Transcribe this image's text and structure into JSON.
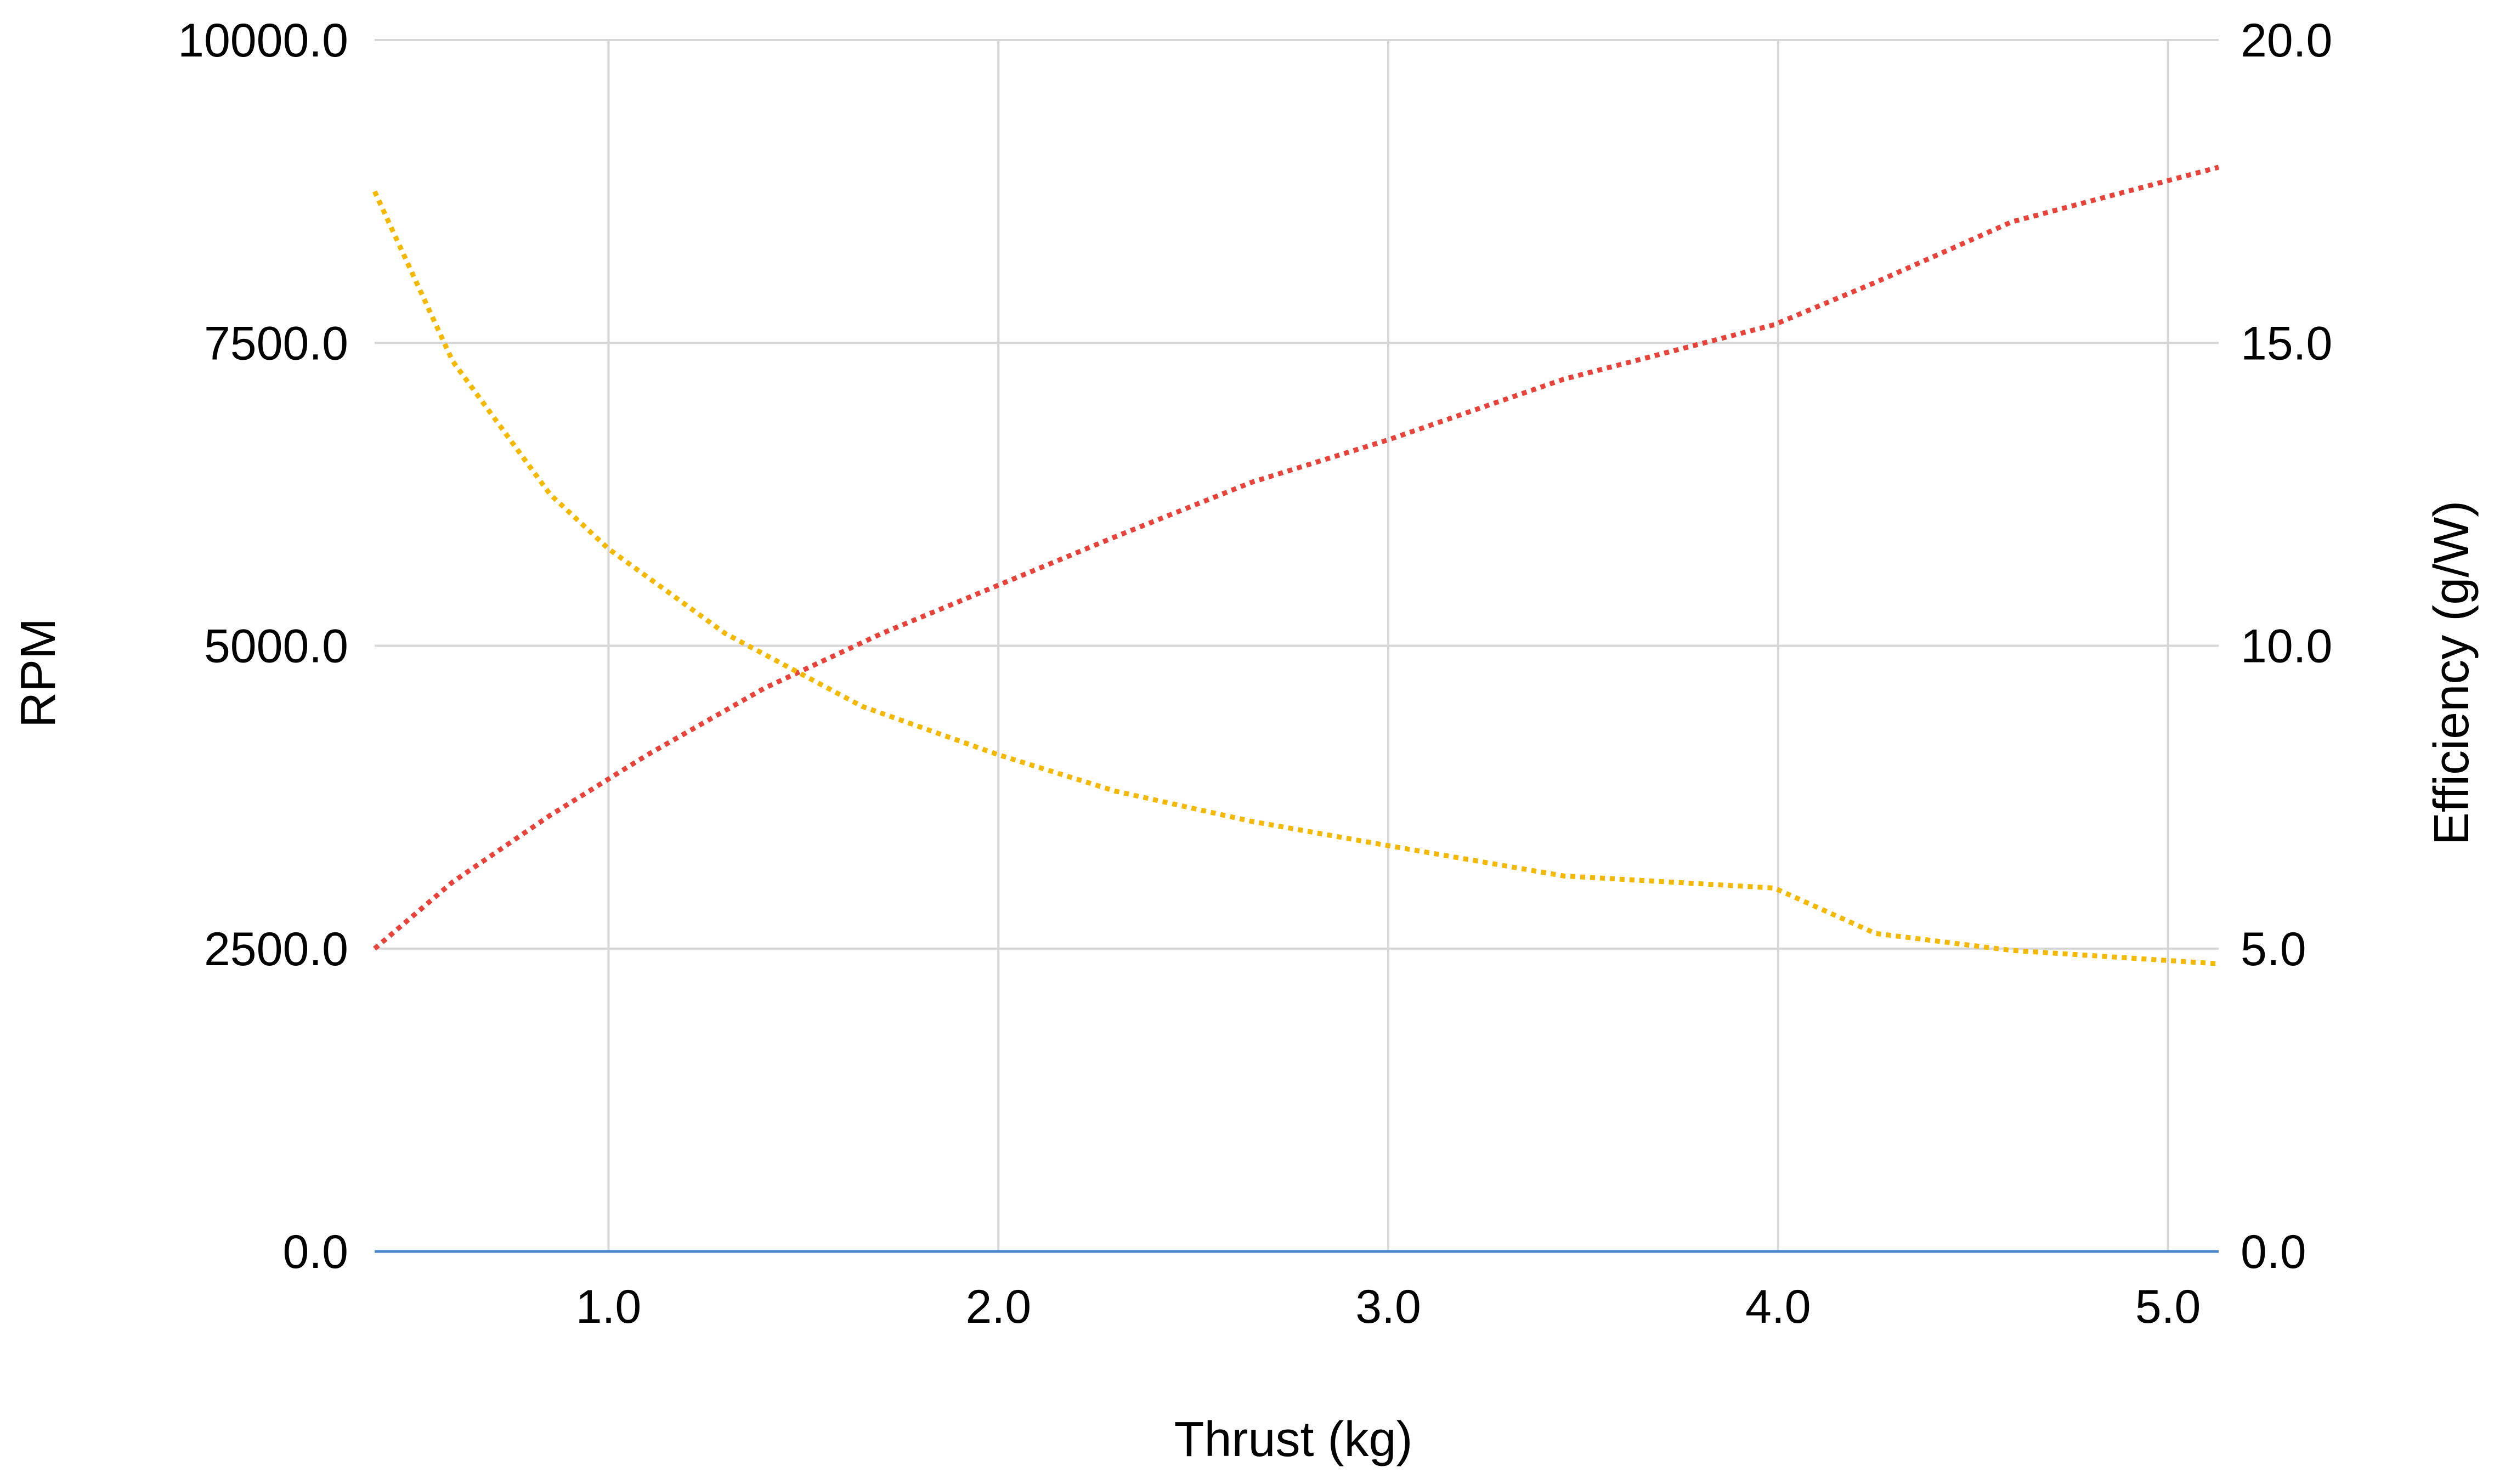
{
  "chart_data": {
    "type": "line",
    "xlabel": "Thrust (kg)",
    "ylabel": "RPM",
    "y2label": "Efficiency (g/W)",
    "xlim": [
      0.4,
      5.13
    ],
    "ylim": [
      0,
      10000
    ],
    "y2lim": [
      0,
      20
    ],
    "x_ticks": [
      "1.0",
      "2.0",
      "3.0",
      "4.0",
      "5.0"
    ],
    "y_ticks": [
      "0.0",
      "2500.0",
      "5000.0",
      "7500.0",
      "10000.0"
    ],
    "y2_ticks": [
      "0.0",
      "5.0",
      "10.0",
      "15.0",
      "20.0"
    ],
    "grid": true,
    "legend": "none",
    "series": [
      {
        "axis": "left",
        "color": "#e8423a",
        "style": "dotted",
        "x": [
          0.4,
          0.6,
          0.85,
          1.1,
          1.4,
          1.7,
          2.0,
          2.3,
          2.65,
          3.0,
          3.45,
          3.99,
          4.25,
          4.6,
          5.13
        ],
        "y": [
          2500,
          3050,
          3600,
          4100,
          4650,
          5100,
          5500,
          5900,
          6350,
          6700,
          7200,
          7650,
          8000,
          8500,
          8950
        ]
      },
      {
        "axis": "right",
        "color": "#f5b800",
        "style": "dotted",
        "x": [
          0.4,
          0.6,
          0.85,
          1.0,
          1.3,
          1.65,
          2.0,
          2.3,
          2.65,
          3.0,
          3.45,
          3.99,
          4.25,
          4.6,
          5.13
        ],
        "y": [
          17.5,
          14.7,
          12.5,
          11.6,
          10.2,
          9.0,
          8.2,
          7.6,
          7.1,
          6.7,
          6.2,
          6.0,
          5.25,
          4.97,
          4.75
        ]
      },
      {
        "axis": "left",
        "color": "#4a86c8",
        "style": "solid",
        "x": [
          0.4,
          5.13
        ],
        "y": [
          0,
          0
        ]
      }
    ]
  }
}
